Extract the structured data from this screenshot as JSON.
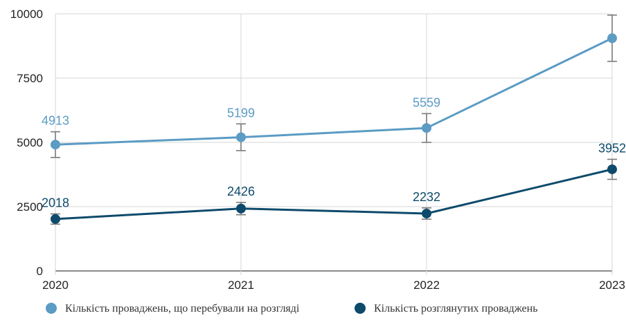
{
  "chart_data": {
    "type": "line",
    "x": [
      "2020",
      "2021",
      "2022",
      "2023"
    ],
    "ylim": [
      0,
      10000
    ],
    "yticks": [
      "0",
      "2500",
      "5000",
      "7500",
      "10000"
    ],
    "grid": true,
    "legend_position": "bottom",
    "series": [
      {
        "name": "Кількість проваджень, що перебували на розгляді",
        "values": [
          4913,
          5199,
          5559,
          9052
        ],
        "error": [
          500,
          520,
          560,
          900
        ],
        "labels": [
          "4913",
          "5199",
          "5559",
          ""
        ],
        "color": "#5b9bc4"
      },
      {
        "name": "Кількість розглянутих проваджень",
        "values": [
          2018,
          2426,
          2232,
          3952
        ],
        "error": [
          200,
          240,
          220,
          390
        ],
        "labels": [
          "2018",
          "2426",
          "2232",
          "3952"
        ],
        "color": "#0d4a6b"
      }
    ]
  }
}
